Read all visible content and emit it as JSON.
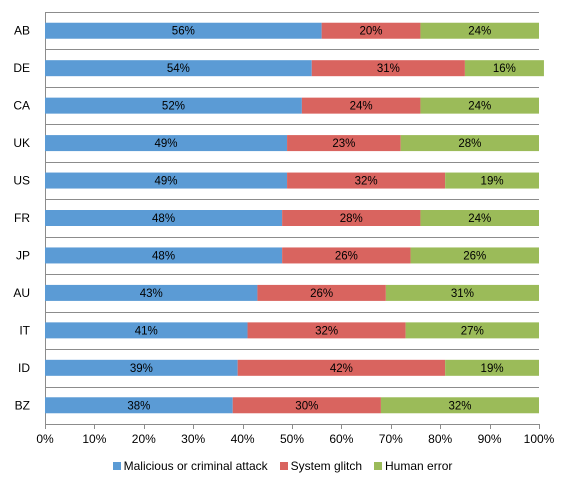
{
  "chart_data": {
    "type": "bar",
    "orientation": "horizontal",
    "stacked": true,
    "categories": [
      "AB",
      "DE",
      "CA",
      "UK",
      "US",
      "FR",
      "JP",
      "AU",
      "IT",
      "ID",
      "BZ"
    ],
    "series": [
      {
        "name": "Malicious or criminal attack",
        "color": "#5b9bd5",
        "values": [
          56,
          54,
          52,
          49,
          49,
          48,
          48,
          43,
          41,
          39,
          38
        ]
      },
      {
        "name": "System glitch",
        "color": "#d9645f",
        "values": [
          20,
          31,
          24,
          23,
          32,
          28,
          26,
          26,
          32,
          42,
          30
        ]
      },
      {
        "name": "Human error",
        "color": "#9bbb59",
        "values": [
          24,
          16,
          24,
          28,
          19,
          24,
          26,
          31,
          27,
          19,
          32
        ]
      }
    ],
    "xlim": [
      0,
      100
    ],
    "xticks": [
      "0%",
      "10%",
      "20%",
      "30%",
      "40%",
      "50%",
      "60%",
      "70%",
      "80%",
      "90%",
      "100%"
    ],
    "value_suffix": "%",
    "grid": "horizontal separators",
    "legend": "bottom"
  }
}
